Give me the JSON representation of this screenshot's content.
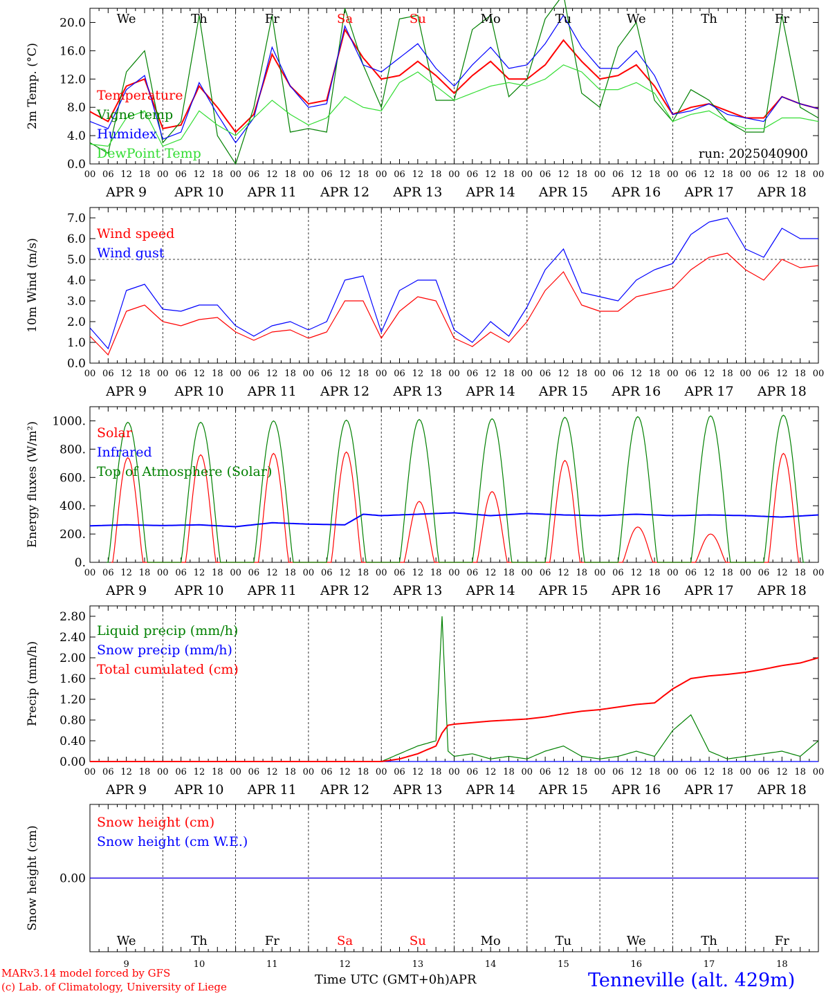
{
  "days": [
    "9",
    "10",
    "11",
    "12",
    "13",
    "14",
    "15",
    "16",
    "17",
    "18"
  ],
  "weekdays": [
    "We",
    "Th",
    "Fr",
    "Sa",
    "Su",
    "Mo",
    "Tu",
    "We",
    "Th",
    "Fr"
  ],
  "weekday_colors": [
    "#000000",
    "#000000",
    "#000000",
    "#ff0000",
    "#ff0000",
    "#000000",
    "#000000",
    "#000000",
    "#000000",
    "#000000"
  ],
  "hour_ticks": [
    "00",
    "06",
    "12",
    "18"
  ],
  "month_label": "APR",
  "run_label": "run: 2025040900",
  "xlabel": "Time UTC (GMT+0h)",
  "footer": {
    "model": "MARv3.14 model forced by GFS",
    "credit": "(c) Lab. of Climatology, University of Liege",
    "location": "Tenneville (alt. 429m)"
  },
  "chart_data": [
    {
      "type": "line",
      "ylabel": "2m Temp. (°C)",
      "ylim": [
        0,
        22
      ],
      "yticks": [
        0,
        4,
        8,
        12,
        16,
        20
      ],
      "ytick_labels": [
        "0.0",
        "4.0",
        "8.0",
        "12.0",
        "16.0",
        "20.0"
      ],
      "legend": "top-left",
      "grid": "vertical dashed day separators",
      "hours": [
        0,
        6,
        12,
        18,
        24,
        30,
        36,
        42,
        48,
        54,
        60,
        66,
        72,
        78,
        84,
        90,
        96,
        102,
        108,
        114,
        120,
        126,
        132,
        138,
        144,
        150,
        156,
        162,
        168,
        174,
        180,
        186,
        192,
        198,
        204,
        210,
        216,
        222,
        228,
        234,
        240
      ],
      "series": [
        {
          "name": "Temperature",
          "color": "#ff0000",
          "values": [
            7.4,
            6.0,
            11.0,
            12.0,
            5.0,
            5.5,
            11.0,
            8.0,
            4.5,
            7.0,
            15.5,
            11.0,
            8.5,
            9.0,
            19.0,
            15.0,
            12.0,
            12.5,
            14.5,
            12.5,
            10.0,
            12.5,
            14.5,
            12.0,
            12.0,
            14.0,
            17.5,
            14.5,
            12.0,
            12.5,
            14.0,
            11.0,
            7.0,
            8.0,
            8.5,
            7.5,
            6.5,
            6.5,
            9.5,
            8.5,
            7.8
          ]
        },
        {
          "name": "Vigne temp",
          "color": "#008000",
          "values": [
            3.0,
            1.5,
            13.0,
            16.0,
            3.0,
            6.0,
            21.0,
            4.0,
            0.0,
            8.0,
            21.0,
            4.5,
            5.0,
            4.5,
            22.0,
            14.0,
            8.0,
            20.5,
            21.0,
            9.0,
            9.0,
            19.0,
            21.0,
            9.5,
            12.0,
            20.5,
            24.0,
            10.0,
            8.0,
            16.5,
            20.0,
            9.0,
            6.0,
            10.5,
            9.0,
            6.0,
            4.5,
            4.5,
            21.0,
            8.0,
            6.5
          ]
        },
        {
          "name": "Humidex",
          "color": "#0000ff",
          "values": [
            6.0,
            5.0,
            10.5,
            12.5,
            3.5,
            4.5,
            11.5,
            7.0,
            3.0,
            6.5,
            16.5,
            11.0,
            8.0,
            8.5,
            19.5,
            14.0,
            13.0,
            15.0,
            17.0,
            13.5,
            11.0,
            14.0,
            16.5,
            13.5,
            14.0,
            17.0,
            21.0,
            16.5,
            13.5,
            13.5,
            16.0,
            12.5,
            7.0,
            7.5,
            8.5,
            7.0,
            6.5,
            6.0,
            9.5,
            8.5,
            7.8
          ]
        },
        {
          "name": "DewPoint Temp",
          "color": "#33dd33",
          "values": [
            2.8,
            2.5,
            6.5,
            7.5,
            2.5,
            3.5,
            7.5,
            5.5,
            4.0,
            6.5,
            9.0,
            7.0,
            5.5,
            6.5,
            9.5,
            8.0,
            7.5,
            11.5,
            13.0,
            11.0,
            9.0,
            10.0,
            11.0,
            11.5,
            11.0,
            12.0,
            14.0,
            13.0,
            10.5,
            10.5,
            11.5,
            10.0,
            6.0,
            7.0,
            7.5,
            6.0,
            5.0,
            5.0,
            6.5,
            6.5,
            6.0
          ]
        }
      ]
    },
    {
      "type": "line",
      "ylabel": "10m Wind (m/s)",
      "ylim": [
        0,
        7.5
      ],
      "yticks": [
        0,
        1,
        2,
        3,
        4,
        5,
        6,
        7
      ],
      "ytick_labels": [
        "0.0",
        "1.0",
        "2.0",
        "3.0",
        "4.0",
        "5.0",
        "6.0",
        "7.0"
      ],
      "hline": 5.0,
      "legend": "top-left",
      "hours": [
        0,
        6,
        12,
        18,
        24,
        30,
        36,
        42,
        48,
        54,
        60,
        66,
        72,
        78,
        84,
        90,
        96,
        102,
        108,
        114,
        120,
        126,
        132,
        138,
        144,
        150,
        156,
        162,
        168,
        174,
        180,
        186,
        192,
        198,
        204,
        210,
        216,
        222,
        228,
        234,
        240
      ],
      "series": [
        {
          "name": "Wind speed",
          "color": "#ff0000",
          "values": [
            1.3,
            0.4,
            2.5,
            2.8,
            2.0,
            1.8,
            2.1,
            2.2,
            1.5,
            1.1,
            1.5,
            1.6,
            1.2,
            1.5,
            3.0,
            3.0,
            1.2,
            2.5,
            3.2,
            3.0,
            1.2,
            0.8,
            1.5,
            1.0,
            2.0,
            3.5,
            4.4,
            2.8,
            2.5,
            2.5,
            3.2,
            3.4,
            3.6,
            4.5,
            5.1,
            5.3,
            4.5,
            4.0,
            5.0,
            4.6,
            4.7
          ]
        },
        {
          "name": "Wind gust",
          "color": "#0000ff",
          "values": [
            1.7,
            0.7,
            3.5,
            3.8,
            2.6,
            2.5,
            2.8,
            2.8,
            1.8,
            1.3,
            1.8,
            2.0,
            1.6,
            2.0,
            4.0,
            4.2,
            1.5,
            3.5,
            4.0,
            4.0,
            1.6,
            1.0,
            2.0,
            1.3,
            2.7,
            4.5,
            5.5,
            3.4,
            3.2,
            3.0,
            4.0,
            4.5,
            4.8,
            6.2,
            6.8,
            7.0,
            5.5,
            5.1,
            6.5,
            6.0,
            6.0
          ]
        }
      ]
    },
    {
      "type": "line",
      "ylabel": "Energy fluxes (W/m²)",
      "ylim": [
        0,
        1100
      ],
      "yticks": [
        0,
        200,
        400,
        600,
        800,
        1000
      ],
      "ytick_labels": [
        "0.",
        "200.",
        "400.",
        "600.",
        "800.",
        "1000."
      ],
      "legend": "top-left",
      "series": [
        {
          "name": "Solar",
          "color": "#ff0000",
          "peaks": [
            [
              9,
              740
            ],
            [
              10,
              760
            ],
            [
              11,
              770
            ],
            [
              12,
              780
            ],
            [
              13,
              430
            ],
            [
              14,
              500
            ],
            [
              15,
              720
            ],
            [
              16,
              250
            ],
            [
              17,
              200
            ],
            [
              18,
              770
            ]
          ]
        },
        {
          "name": "Infrared",
          "color": "#0000ff",
          "hours": [
            0,
            12,
            24,
            36,
            48,
            60,
            72,
            84,
            90,
            96,
            108,
            120,
            132,
            144,
            156,
            168,
            180,
            192,
            204,
            216,
            228,
            240
          ],
          "values": [
            258,
            265,
            260,
            265,
            252,
            280,
            270,
            265,
            340,
            330,
            340,
            350,
            330,
            345,
            335,
            330,
            340,
            330,
            335,
            330,
            320,
            335
          ]
        },
        {
          "name": "Top of Atmosphere (Solar)",
          "color": "#008000",
          "peaks": [
            [
              9,
              990
            ],
            [
              10,
              990
            ],
            [
              11,
              1000
            ],
            [
              12,
              1005
            ],
            [
              13,
              1010
            ],
            [
              14,
              1015
            ],
            [
              15,
              1025
            ],
            [
              16,
              1030
            ],
            [
              17,
              1035
            ],
            [
              18,
              1040
            ]
          ]
        }
      ]
    },
    {
      "type": "line",
      "ylabel": "Precip (mm/h)",
      "ylim": [
        0,
        3.0
      ],
      "yticks": [
        0,
        0.4,
        0.8,
        1.2,
        1.6,
        2.0,
        2.4,
        2.8
      ],
      "ytick_labels": [
        "0.00",
        "0.40",
        "0.80",
        "1.20",
        "1.60",
        "2.00",
        "2.40",
        "2.80"
      ],
      "legend": "top-left",
      "hours": [
        0,
        96,
        102,
        108,
        114,
        116,
        118,
        120,
        126,
        132,
        138,
        144,
        150,
        156,
        162,
        168,
        174,
        180,
        186,
        192,
        198,
        204,
        210,
        216,
        222,
        228,
        234,
        240
      ],
      "series": [
        {
          "name": "Liquid precip (mm/h)",
          "color": "#008000",
          "values": [
            0,
            0,
            0.15,
            0.3,
            0.4,
            2.8,
            0.2,
            0.1,
            0.15,
            0.05,
            0.1,
            0.05,
            0.2,
            0.3,
            0.1,
            0.05,
            0.1,
            0.2,
            0.1,
            0.6,
            0.9,
            0.2,
            0.05,
            0.1,
            0.15,
            0.2,
            0.1,
            0.4
          ]
        },
        {
          "name": "Snow precip (mm/h)",
          "color": "#0000ff",
          "values": [
            0,
            0,
            0,
            0,
            0,
            0,
            0,
            0,
            0,
            0,
            0,
            0,
            0,
            0,
            0,
            0,
            0,
            0,
            0,
            0,
            0,
            0,
            0,
            0,
            0,
            0,
            0,
            0
          ]
        },
        {
          "name": "Total cumulated (cm)",
          "color": "#ff0000",
          "values": [
            0,
            0,
            0.05,
            0.15,
            0.3,
            0.55,
            0.7,
            0.72,
            0.75,
            0.78,
            0.8,
            0.82,
            0.86,
            0.92,
            0.97,
            1.0,
            1.05,
            1.1,
            1.13,
            1.4,
            1.6,
            1.65,
            1.68,
            1.72,
            1.78,
            1.85,
            1.9,
            2.0
          ]
        }
      ]
    },
    {
      "type": "line",
      "ylabel": "Snow height (cm)",
      "ylim": [
        -1,
        1
      ],
      "yticks": [
        0
      ],
      "ytick_labels": [
        "0.00"
      ],
      "legend": "top-left",
      "series": [
        {
          "name": "Snow height (cm)",
          "color": "#ff0000",
          "values": [
            0,
            0
          ]
        },
        {
          "name": "Snow height (cm W.E.)",
          "color": "#0000ff",
          "values": [
            0,
            0
          ]
        }
      ]
    }
  ]
}
